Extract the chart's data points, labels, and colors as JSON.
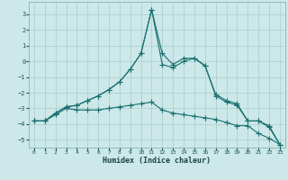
{
  "xlabel": "Humidex (Indice chaleur)",
  "xlim": [
    -0.5,
    23.5
  ],
  "ylim": [
    -5.5,
    3.8
  ],
  "yticks": [
    -5,
    -4,
    -3,
    -2,
    -1,
    0,
    1,
    2,
    3
  ],
  "xticks": [
    0,
    1,
    2,
    3,
    4,
    5,
    6,
    7,
    8,
    9,
    10,
    11,
    12,
    13,
    14,
    15,
    16,
    17,
    18,
    19,
    20,
    21,
    22,
    23
  ],
  "background_color": "#cce8e8",
  "grid_color": "#aacccc",
  "line_color": "#1a7070",
  "series1": [
    -3.8,
    -3.8,
    -3.3,
    -2.9,
    -2.8,
    -2.5,
    -2.2,
    -1.8,
    -1.3,
    -0.5,
    0.5,
    3.3,
    0.5,
    -0.2,
    0.2,
    0.2,
    -0.3,
    -2.1,
    -2.5,
    -2.7,
    -3.8,
    -3.8,
    -4.1,
    -5.3
  ],
  "series2": [
    -3.8,
    -3.8,
    -3.3,
    -2.9,
    -2.8,
    -2.5,
    -2.2,
    -1.8,
    -1.3,
    -0.5,
    0.5,
    3.3,
    -0.2,
    -0.4,
    0.0,
    0.2,
    -0.25,
    -2.2,
    -2.6,
    -2.8,
    -3.8,
    -3.8,
    -4.2,
    -5.3
  ],
  "series3": [
    -3.8,
    -3.8,
    -3.4,
    -3.0,
    -3.1,
    -3.1,
    -3.1,
    -3.0,
    -2.9,
    -2.8,
    -2.7,
    -2.6,
    -3.1,
    -3.3,
    -3.4,
    -3.5,
    -3.6,
    -3.7,
    -3.9,
    -4.1,
    -4.1,
    -4.6,
    -4.9,
    -5.3
  ]
}
